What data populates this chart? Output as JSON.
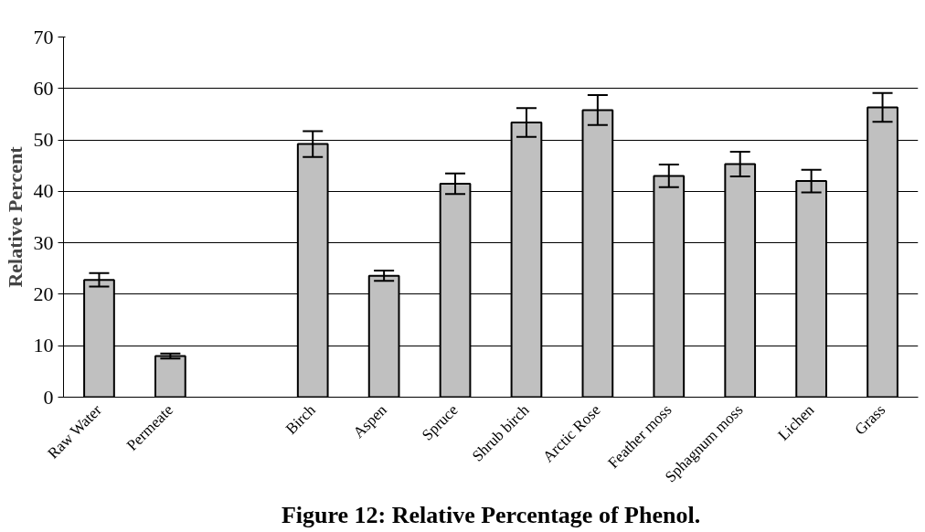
{
  "chart_data": {
    "type": "bar",
    "title": "Figure 12: Relative Percentage of Phenol.",
    "ylabel": "Relative Percent",
    "categories": [
      "Raw Water",
      "Permeate",
      null,
      "Birch",
      "Aspen",
      "Spruce",
      "Shrub birch",
      "Arctic Rose",
      "Feather moss",
      "Sphagnum moss",
      "Lichen",
      "Grass"
    ],
    "values": [
      22.8,
      8.0,
      null,
      49.2,
      23.6,
      41.5,
      53.4,
      55.8,
      43.0,
      45.3,
      42.0,
      56.3
    ],
    "errors": [
      1.3,
      0.5,
      null,
      2.5,
      1.0,
      2.0,
      2.8,
      2.9,
      2.2,
      2.4,
      2.2,
      2.8
    ],
    "color": "#c0c0c0",
    "ylim": [
      0,
      70
    ],
    "yticks": [
      0,
      10,
      20,
      30,
      40,
      50,
      60,
      70
    ],
    "grid": "y"
  }
}
